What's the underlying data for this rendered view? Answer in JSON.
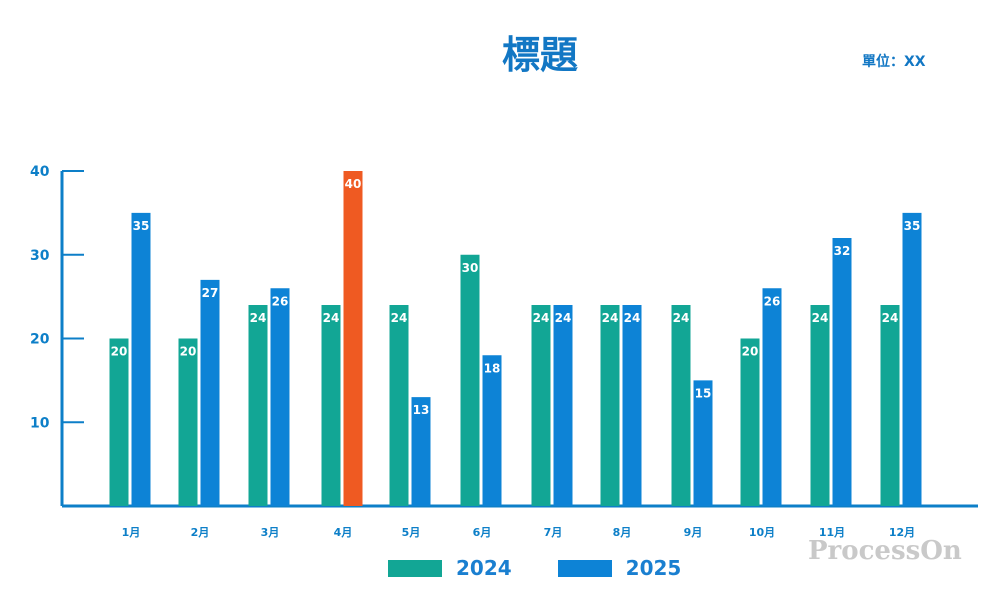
{
  "header": {
    "title": "標題",
    "unit": "單位：XX"
  },
  "watermark": "ProcessOn",
  "colors": {
    "accent": "#1277c4",
    "series_2024": "#12a695",
    "series_2025": "#0d83d6",
    "highlight": "#ef5a22",
    "axis": "#0d7fc8"
  },
  "chart_data": {
    "type": "bar",
    "title": "標題",
    "xlabel": "",
    "ylabel": "",
    "ylim": [
      0,
      40
    ],
    "yticks": [
      10,
      20,
      30,
      40
    ],
    "grid": false,
    "legend_position": "bottom",
    "categories": [
      "1月",
      "2月",
      "3月",
      "4月",
      "5月",
      "6月",
      "7月",
      "8月",
      "9月",
      "10月",
      "11月",
      "12月"
    ],
    "series": [
      {
        "name": "2024",
        "values": [
          20,
          20,
          24,
          24,
          24,
          30,
          24,
          24,
          24,
          20,
          24,
          24
        ]
      },
      {
        "name": "2025",
        "values": [
          35,
          27,
          26,
          40,
          13,
          18,
          24,
          24,
          15,
          26,
          32,
          35
        ],
        "highlight": [
          3
        ]
      }
    ]
  }
}
